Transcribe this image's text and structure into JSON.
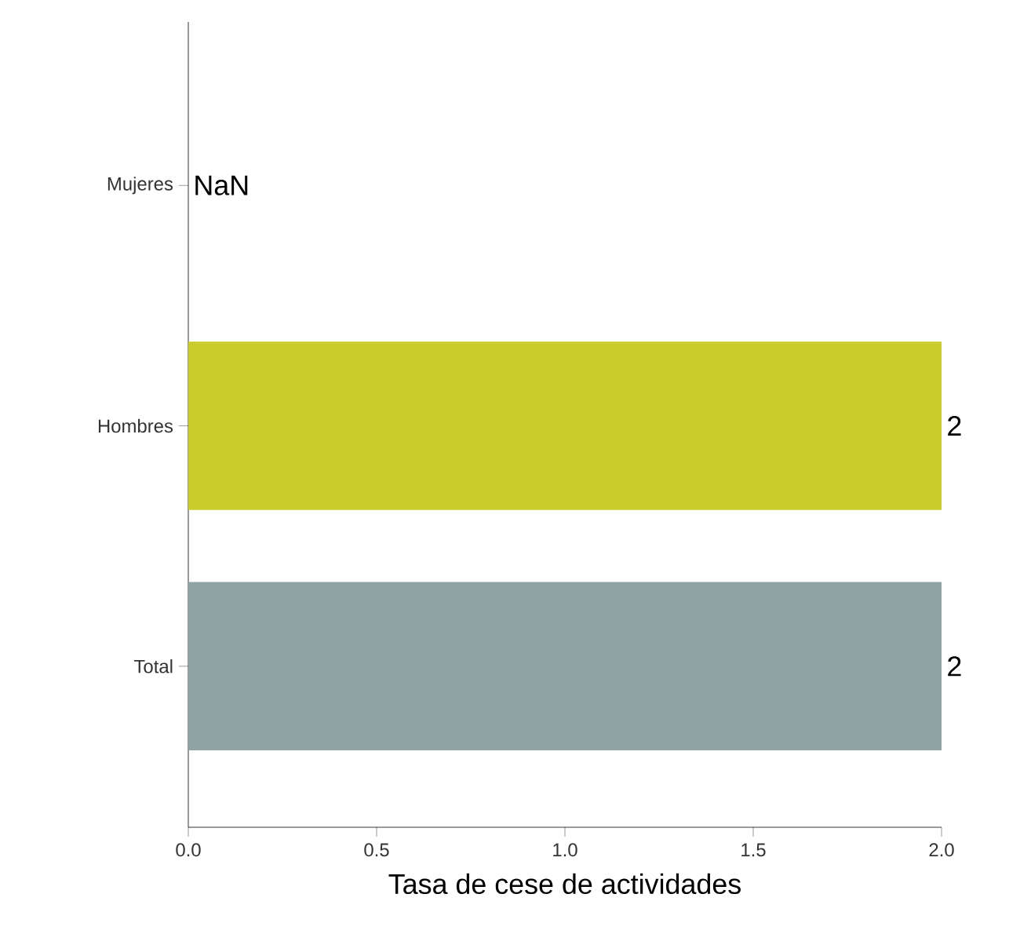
{
  "chart_data": {
    "type": "bar",
    "orientation": "horizontal",
    "xlabel": "Tasa de cese de actividades",
    "categories": [
      "Mujeres",
      "Hombres",
      "Total"
    ],
    "values": [
      null,
      2,
      2
    ],
    "colors": [
      null,
      "#c9cc2b",
      "#90a4a3"
    ],
    "value_labels": [
      "NaN",
      "2",
      "2"
    ],
    "xlim": [
      0,
      2
    ],
    "xticks": [
      {
        "value": 0,
        "label": "0.0"
      },
      0.5,
      {
        "value": 1,
        "label": "1.0"
      },
      1.5,
      {
        "value": 2,
        "label": "2.0"
      }
    ],
    "grid": false
  }
}
